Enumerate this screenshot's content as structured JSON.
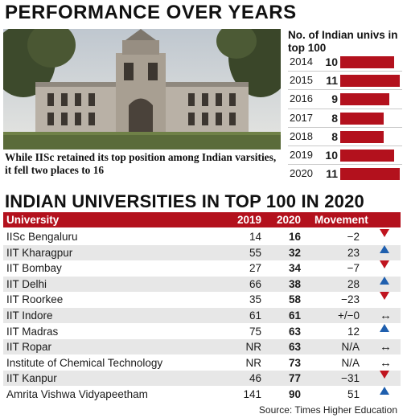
{
  "header": {
    "title": "PERFORMANCE OVER YEARS",
    "caption": "While IISc retained its top position among Indian varsities, it fell two places to 16"
  },
  "colors": {
    "accent": "#b3111d",
    "up": "#1f5fae",
    "down": "#c0141f",
    "row_alt": "#e7e7e7"
  },
  "chart_data": [
    {
      "type": "bar",
      "title": "No. of Indian univs in top 100",
      "categories": [
        "2014",
        "2015",
        "2016",
        "2017",
        "2018",
        "2019",
        "2020"
      ],
      "values": [
        10,
        11,
        9,
        8,
        8,
        10,
        11
      ]
    },
    {
      "type": "table",
      "title": "INDIAN UNIVERSITIES IN TOP 100 IN 2020",
      "columns": [
        "University",
        "2019",
        "2020",
        "Movement"
      ],
      "rows": [
        {
          "name": "IISc Bengaluru",
          "y2019": "14",
          "y2020": "16",
          "movement": "−2",
          "trend": "down"
        },
        {
          "name": "IIT Kharagpur",
          "y2019": "55",
          "y2020": "32",
          "movement": "23",
          "trend": "up"
        },
        {
          "name": "IIT Bombay",
          "y2019": "27",
          "y2020": "34",
          "movement": "−7",
          "trend": "down"
        },
        {
          "name": "IIT Delhi",
          "y2019": "66",
          "y2020": "38",
          "movement": "28",
          "trend": "up"
        },
        {
          "name": "IIT Roorkee",
          "y2019": "35",
          "y2020": "58",
          "movement": "−23",
          "trend": "down"
        },
        {
          "name": "IIT Indore",
          "y2019": "61",
          "y2020": "61",
          "movement": "+/−0",
          "trend": "same"
        },
        {
          "name": "IIT Madras",
          "y2019": "75",
          "y2020": "63",
          "movement": "12",
          "trend": "up"
        },
        {
          "name": "IIT Ropar",
          "y2019": "NR",
          "y2020": "63",
          "movement": "N/A",
          "trend": "same"
        },
        {
          "name": "Institute of Chemical Technology",
          "y2019": "NR",
          "y2020": "73",
          "movement": "N/A",
          "trend": "same"
        },
        {
          "name": "IIT Kanpur",
          "y2019": "46",
          "y2020": "77",
          "movement": "−31",
          "trend": "down"
        },
        {
          "name": "Amrita Vishwa Vidyapeetham",
          "y2019": "141",
          "y2020": "90",
          "movement": "51",
          "trend": "up"
        }
      ]
    }
  ],
  "source": "Source: Times Higher Education"
}
